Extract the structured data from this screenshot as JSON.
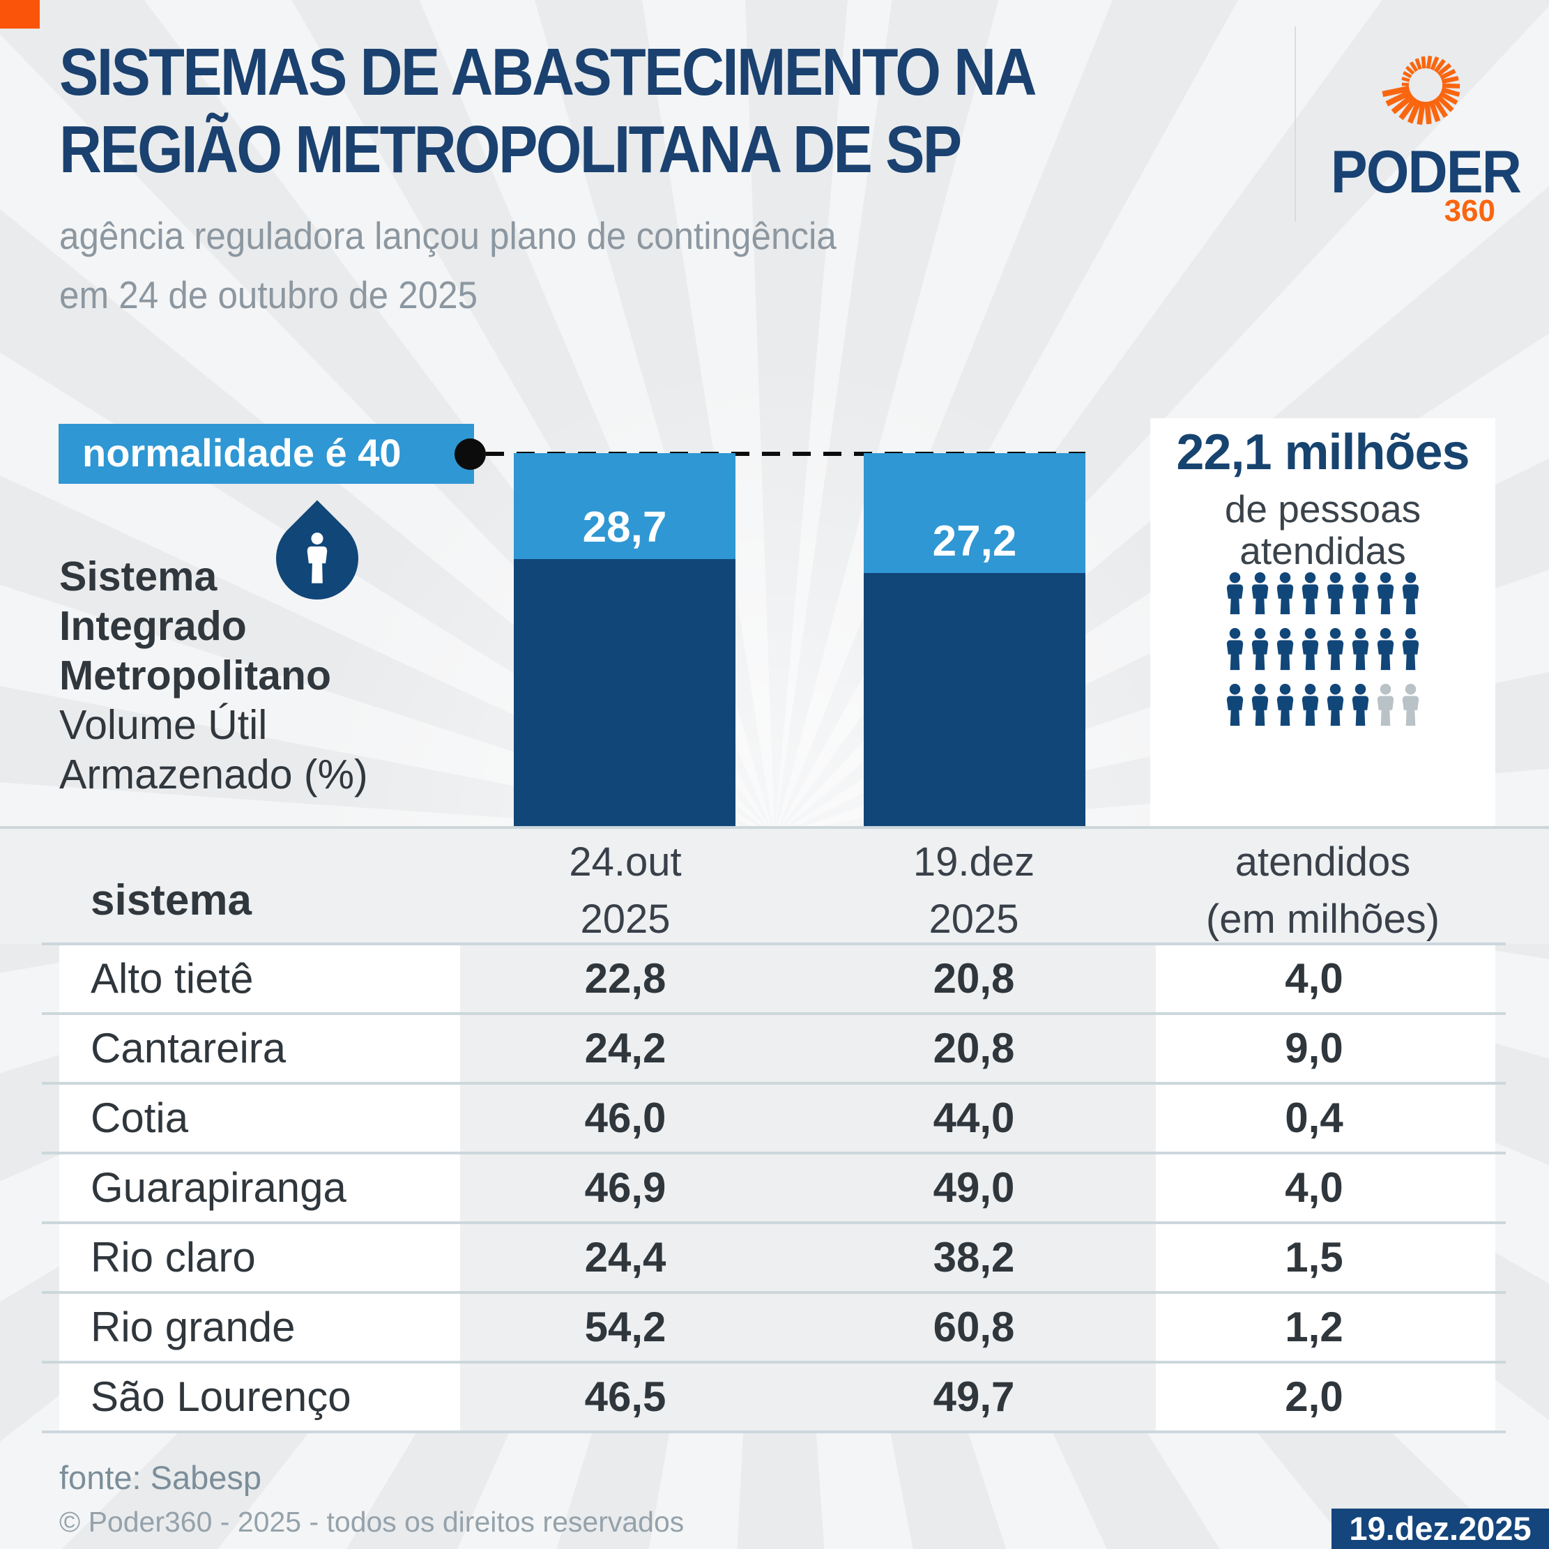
{
  "header": {
    "title_line1": "SISTEMAS DE ABASTECIMENTO NA",
    "title_line2": "REGIÃO METROPOLITANA DE SP",
    "subtitle_line1": "agência reguladora lançou plano de contingência",
    "subtitle_line2": "em 24 de outubro de 2025",
    "logo": {
      "name": "PODER",
      "suffix": "360"
    }
  },
  "chart": {
    "annotation": "normalidade é 40",
    "left_label_bold": [
      "Sistema",
      "Integrado",
      "Metropolitano"
    ],
    "left_label_regular": [
      "Volume Útil",
      "Armazenado (%)"
    ]
  },
  "chart_data": {
    "type": "bar",
    "stacked": true,
    "title": "Sistema Integrado Metropolitano — Volume Útil Armazenado (%)",
    "categories": [
      "24.out 2025",
      "19.dez 2025"
    ],
    "values": [
      28.7,
      27.2
    ],
    "value_labels": [
      "28,7",
      "27,2"
    ],
    "reference_line": {
      "value": 40,
      "label": "normalidade é 40"
    },
    "ylim": [
      0,
      40
    ],
    "legend_position": "none",
    "grid": false,
    "colors": {
      "stored": "#114679",
      "remainder_to_normal": "#2F97D3"
    }
  },
  "stats": {
    "headline": "22,1 milhões",
    "line1": "de pessoas",
    "line2": "atendidas",
    "pictogram": {
      "total": 24,
      "filled": 22,
      "per_row": 8,
      "filled_color": "#114679",
      "empty_color": "#b9c2c6"
    }
  },
  "table": {
    "header": {
      "sistema": "sistema",
      "col1_line1": "24.out",
      "col1_line2": "2025",
      "col2_line1": "19.dez",
      "col2_line2": "2025",
      "col3_line1": "atendidos",
      "col3_line2": "(em milhões)"
    },
    "rows": [
      {
        "sistema": "Alto tietê",
        "out": "22,8",
        "dez": "20,8",
        "atendidos": "4,0"
      },
      {
        "sistema": "Cantareira",
        "out": "24,2",
        "dez": "20,8",
        "atendidos": "9,0"
      },
      {
        "sistema": "Cotia",
        "out": "46,0",
        "dez": "44,0",
        "atendidos": "0,4"
      },
      {
        "sistema": "Guarapiranga",
        "out": "46,9",
        "dez": "49,0",
        "atendidos": "4,0"
      },
      {
        "sistema": "Rio claro",
        "out": "24,4",
        "dez": "38,2",
        "atendidos": "1,5"
      },
      {
        "sistema": "Rio grande",
        "out": "54,2",
        "dez": "60,8",
        "atendidos": "1,2"
      },
      {
        "sistema": "São Lourenço",
        "out": "46,5",
        "dez": "49,7",
        "atendidos": "2,0"
      }
    ]
  },
  "footer": {
    "source": "fonte: Sabesp",
    "copyright": "© Poder360 - 2025 - todos os direitos reservados",
    "badge": "19.dez.2025"
  },
  "colors": {
    "accent_orange": "#F95409",
    "title_navy": "#1A416F",
    "bar_light_blue": "#2F97D3",
    "bar_dark_navy": "#114679",
    "background": "#e9ebed",
    "divider": "#ccd7dc"
  }
}
